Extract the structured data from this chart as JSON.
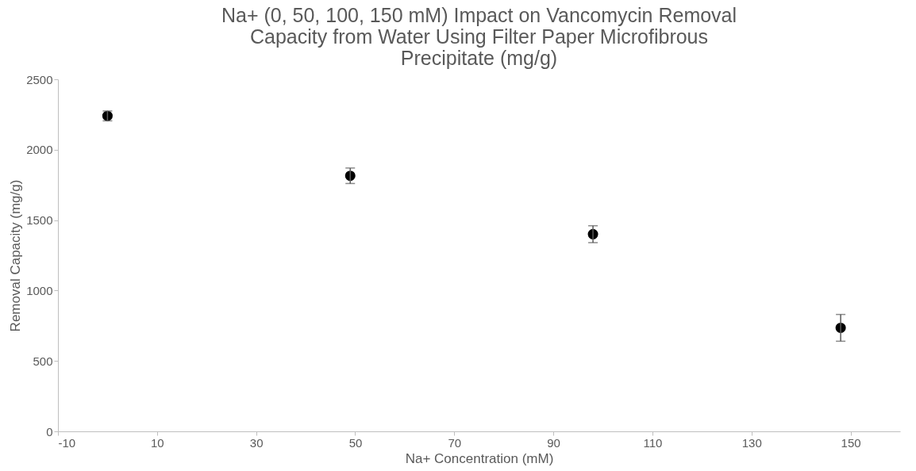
{
  "chart_data": {
    "type": "scatter",
    "title": [
      "Na+ (0, 50, 100, 150 mM) Impact on Vancomycin Removal",
      "Capacity from Water Using Filter Paper Microfibrous",
      "Precipitate (mg/g)"
    ],
    "xlabel": "Na+ Concentration (mM)",
    "ylabel": "Removal Capacity (mg/g)",
    "x": [
      0,
      49,
      98,
      148
    ],
    "series": [
      {
        "color": "#000000",
        "values": [
          2240,
          1815,
          1400,
          735
        ],
        "errors": [
          35,
          55,
          60,
          95
        ]
      }
    ],
    "xlim": [
      -10,
      160
    ],
    "xticks": [
      -10,
      10,
      30,
      50,
      70,
      90,
      110,
      130,
      150
    ],
    "ylim": [
      0,
      2500
    ],
    "yticks": [
      0,
      500,
      1000,
      1500,
      2000,
      2500
    ],
    "grid": false,
    "marker": "circle"
  }
}
